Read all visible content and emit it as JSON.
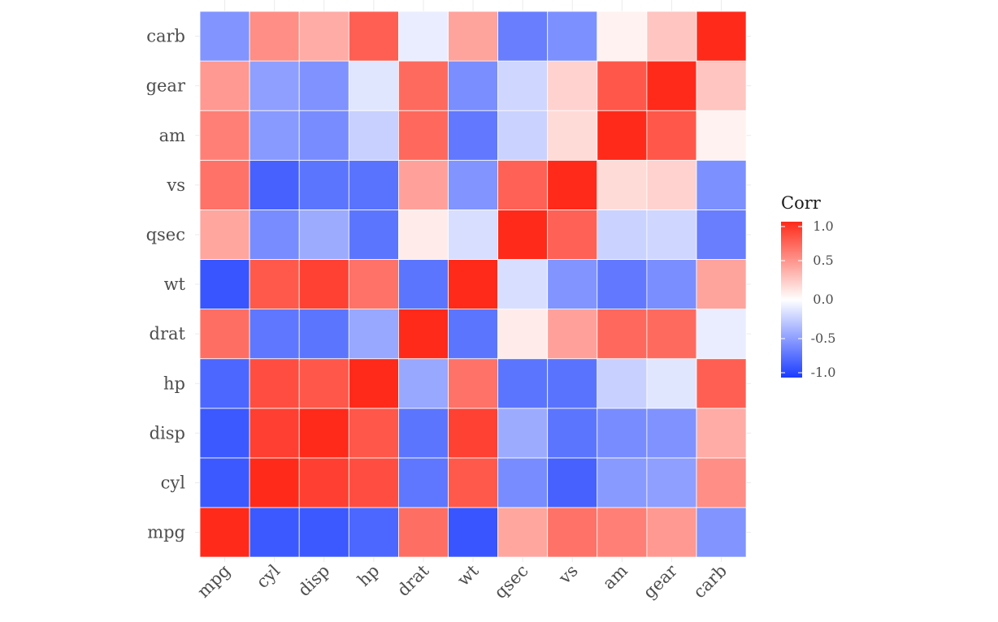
{
  "chart_data": {
    "type": "heatmap",
    "title": "",
    "xlabel": "",
    "ylabel": "",
    "variables": [
      "mpg",
      "cyl",
      "disp",
      "hp",
      "drat",
      "wt",
      "qsec",
      "vs",
      "am",
      "gear",
      "carb"
    ],
    "x": [
      "mpg",
      "cyl",
      "disp",
      "hp",
      "drat",
      "wt",
      "qsec",
      "vs",
      "am",
      "gear",
      "carb"
    ],
    "y": [
      "mpg",
      "cyl",
      "disp",
      "hp",
      "drat",
      "wt",
      "qsec",
      "vs",
      "am",
      "gear",
      "carb"
    ],
    "values": [
      [
        1.0,
        -0.85,
        -0.85,
        -0.78,
        0.68,
        -0.87,
        0.42,
        0.66,
        0.6,
        0.48,
        -0.55
      ],
      [
        -0.85,
        1.0,
        0.9,
        0.83,
        -0.7,
        0.78,
        -0.59,
        -0.81,
        -0.52,
        -0.49,
        0.53
      ],
      [
        -0.85,
        0.9,
        1.0,
        0.79,
        -0.71,
        0.89,
        -0.43,
        -0.71,
        -0.59,
        -0.56,
        0.39
      ],
      [
        -0.78,
        0.83,
        0.79,
        1.0,
        -0.45,
        0.66,
        -0.71,
        -0.72,
        -0.24,
        -0.13,
        0.75
      ],
      [
        0.68,
        -0.7,
        -0.71,
        -0.45,
        1.0,
        -0.71,
        0.09,
        0.44,
        0.71,
        0.7,
        -0.09
      ],
      [
        -0.87,
        0.78,
        0.89,
        0.66,
        -0.71,
        1.0,
        -0.17,
        -0.55,
        -0.69,
        -0.58,
        0.43
      ],
      [
        0.42,
        -0.59,
        -0.43,
        -0.71,
        0.09,
        -0.17,
        1.0,
        0.74,
        -0.23,
        -0.21,
        -0.66
      ],
      [
        0.66,
        -0.81,
        -0.71,
        -0.72,
        0.44,
        -0.55,
        0.74,
        1.0,
        0.17,
        0.21,
        -0.57
      ],
      [
        0.6,
        -0.52,
        -0.59,
        -0.24,
        0.71,
        -0.69,
        -0.23,
        0.17,
        1.0,
        0.79,
        0.06
      ],
      [
        0.48,
        -0.49,
        -0.56,
        -0.13,
        0.7,
        -0.58,
        -0.21,
        0.21,
        0.79,
        1.0,
        0.27
      ],
      [
        -0.55,
        0.53,
        0.39,
        0.75,
        -0.09,
        0.43,
        -0.66,
        -0.57,
        0.06,
        0.27,
        1.0
      ]
    ],
    "color_scale": {
      "low": "#1a3cff",
      "mid": "#ffffff",
      "high": "#ff2a1a",
      "limits": [
        -1,
        1
      ]
    },
    "legend": {
      "title": "Corr",
      "ticks": [
        1.0,
        0.5,
        0.0,
        -0.5,
        -1.0
      ],
      "labels": [
        "1.0",
        "0.5",
        "0.0",
        "-0.5",
        "-1.0"
      ],
      "placement": "right"
    },
    "grid": true
  }
}
